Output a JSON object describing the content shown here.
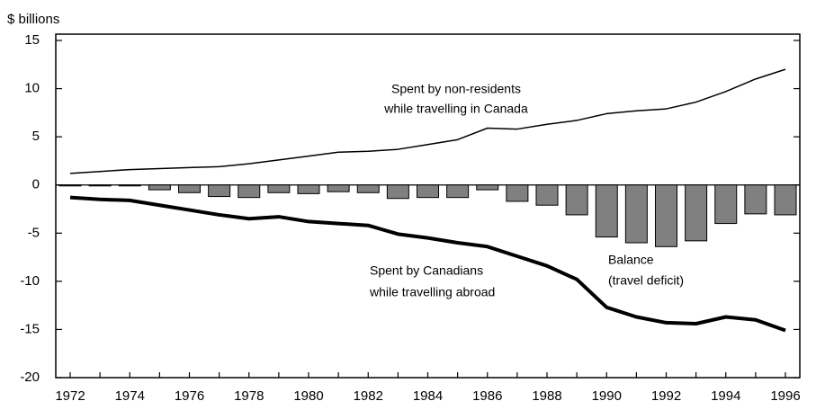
{
  "chart_data": {
    "type": "bar-line",
    "y_label": "$ billions",
    "categories": [
      "1972",
      null,
      "1974",
      null,
      "1976",
      null,
      "1978",
      null,
      "1980",
      null,
      "1982",
      null,
      "1984",
      null,
      "1986",
      null,
      "1988",
      null,
      "1990",
      null,
      "1992",
      null,
      "1994",
      null,
      "1996"
    ],
    "ylim": [
      -20,
      15
    ],
    "yticks": [
      15,
      10,
      5,
      0,
      -5,
      -10,
      -15,
      -20
    ],
    "series": [
      {
        "name": [
          "Spent by non-residents",
          "while travelling in Canada"
        ],
        "type": "line",
        "color": "#000000",
        "line_width": 1.5,
        "values": [
          1.2,
          1.4,
          1.6,
          1.7,
          1.8,
          1.9,
          2.2,
          2.6,
          3.0,
          3.4,
          3.5,
          3.7,
          4.2,
          4.7,
          5.9,
          5.8,
          6.3,
          6.7,
          7.4,
          7.7,
          7.9,
          8.6,
          9.7,
          11.0,
          12.0
        ]
      },
      {
        "name": [
          "Spent by Canadians",
          "while travelling abroad"
        ],
        "type": "line",
        "color": "#000000",
        "line_width": 4,
        "values": [
          -1.3,
          -1.5,
          -1.6,
          -2.1,
          -2.6,
          -3.1,
          -3.5,
          -3.3,
          -3.8,
          -4.0,
          -4.2,
          -5.1,
          -5.5,
          -6.0,
          -6.4,
          -7.4,
          -8.4,
          -9.8,
          -12.7,
          -13.7,
          -14.3,
          -14.4,
          -13.7,
          -14.0,
          -15.1
        ]
      },
      {
        "name": [
          "Balance",
          "(travel deficit)"
        ],
        "type": "bar",
        "color": "#808080",
        "values": [
          -0.1,
          -0.1,
          -0.1,
          -0.5,
          -0.8,
          -1.2,
          -1.3,
          -0.8,
          -0.9,
          -0.7,
          -0.8,
          -1.4,
          -1.3,
          -1.3,
          -0.5,
          -1.7,
          -2.1,
          -3.1,
          -5.4,
          -6.0,
          -6.4,
          -5.8,
          -4.0,
          -3.0,
          -3.1
        ]
      }
    ]
  }
}
